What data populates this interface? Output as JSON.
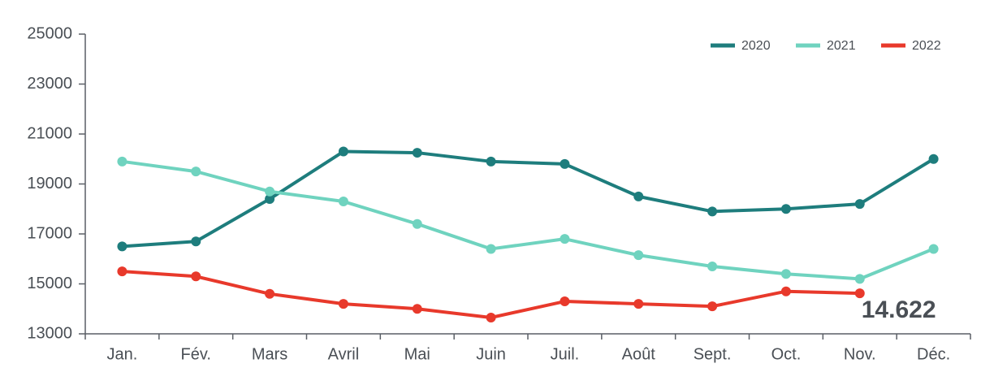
{
  "chart_data": {
    "type": "line",
    "categories": [
      "Jan.",
      "Fév.",
      "Mars",
      "Avril",
      "Mai",
      "Juin",
      "Juil.",
      "Août",
      "Sept.",
      "Oct.",
      "Nov.",
      "Déc."
    ],
    "series": [
      {
        "name": "2020",
        "color": "#1e7d7d",
        "values": [
          16500,
          16700,
          18400,
          20300,
          20250,
          19900,
          19800,
          18500,
          17900,
          18000,
          18200,
          20000
        ]
      },
      {
        "name": "2021",
        "color": "#6fd3bf",
        "values": [
          19900,
          19500,
          18700,
          18300,
          17400,
          16400,
          16800,
          16150,
          15700,
          15400,
          15200,
          16400
        ]
      },
      {
        "name": "2022",
        "color": "#e8392b",
        "values": [
          15500,
          15300,
          14600,
          14200,
          14000,
          13650,
          14300,
          14200,
          14100,
          14700,
          14622,
          null
        ],
        "value_labels": [
          null,
          null,
          null,
          null,
          null,
          null,
          null,
          null,
          null,
          null,
          "14.622",
          null
        ]
      }
    ],
    "ylim": [
      13000,
      25000
    ],
    "yticks": [
      13000,
      15000,
      17000,
      19000,
      21000,
      23000,
      25000
    ],
    "grid": false,
    "legend": "top-right"
  }
}
